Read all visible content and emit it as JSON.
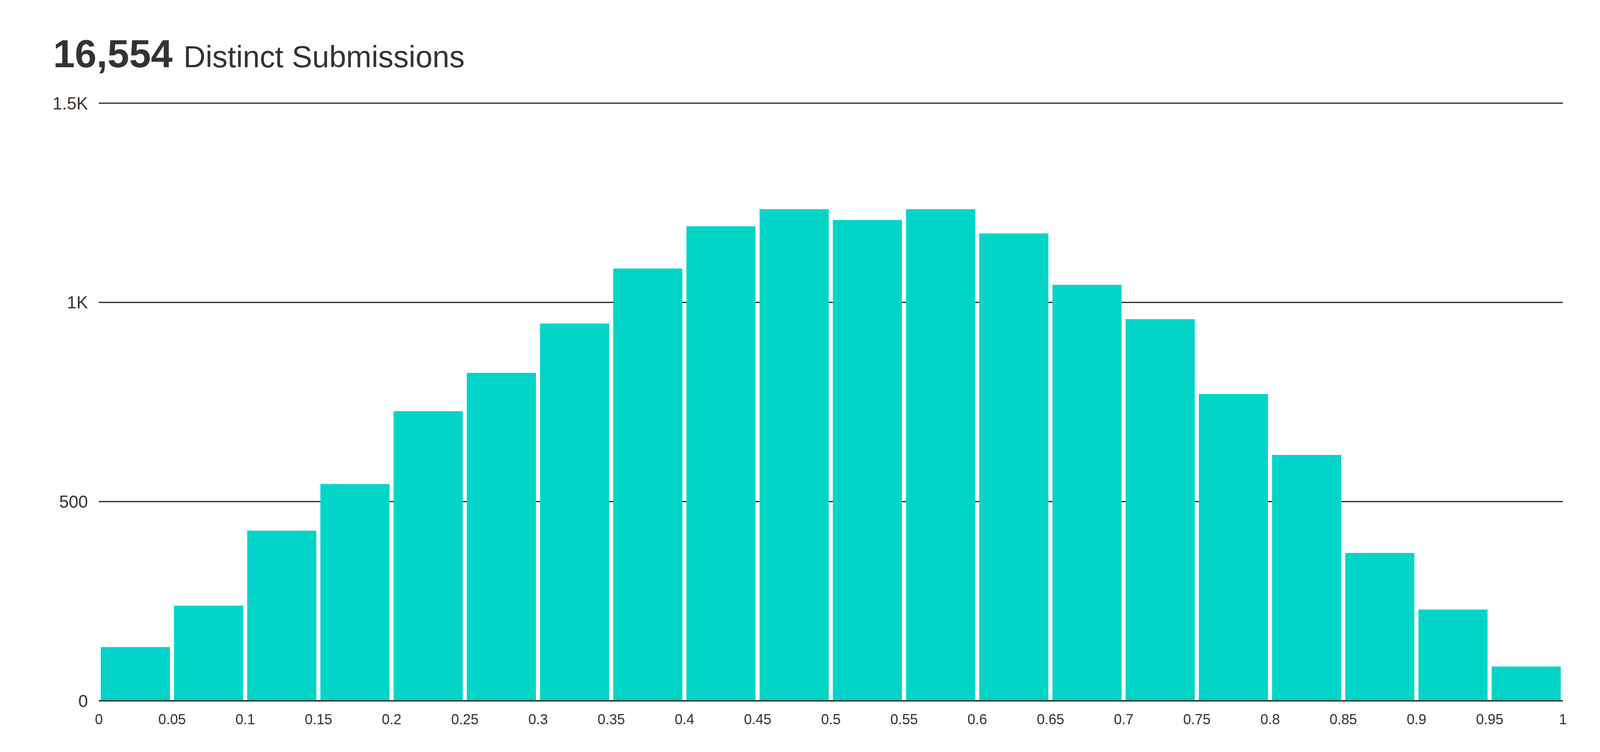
{
  "chart_data": {
    "type": "histogram",
    "title": "16,554",
    "subtitle": "Distinct Submissions",
    "bins": [
      0,
      0.05,
      0.1,
      0.15,
      0.2,
      0.25,
      0.3,
      0.35,
      0.4,
      0.45,
      0.5,
      0.55,
      0.6,
      0.65,
      0.7,
      0.75,
      0.8,
      0.85,
      0.9,
      0.95,
      1
    ],
    "values": [
      135,
      239,
      427,
      544,
      727,
      823,
      947,
      1085,
      1191,
      1234,
      1207,
      1234,
      1173,
      1044,
      958,
      770,
      617,
      371,
      229,
      86
    ],
    "color": "#02d5c8",
    "xlim": [
      0,
      1
    ],
    "xticks": [
      0,
      0.05,
      0.1,
      0.15,
      0.2,
      0.25,
      0.3,
      0.35,
      0.4,
      0.45,
      0.5,
      0.55,
      0.6,
      0.65,
      0.7,
      0.75,
      0.8,
      0.85,
      0.9,
      0.95,
      1
    ],
    "ylim": [
      0,
      1500
    ],
    "yticks": [
      0,
      500,
      {
        "value": 1000,
        "label": "1K"
      },
      {
        "value": 1500,
        "label": "1.5K"
      }
    ],
    "grid": true
  }
}
